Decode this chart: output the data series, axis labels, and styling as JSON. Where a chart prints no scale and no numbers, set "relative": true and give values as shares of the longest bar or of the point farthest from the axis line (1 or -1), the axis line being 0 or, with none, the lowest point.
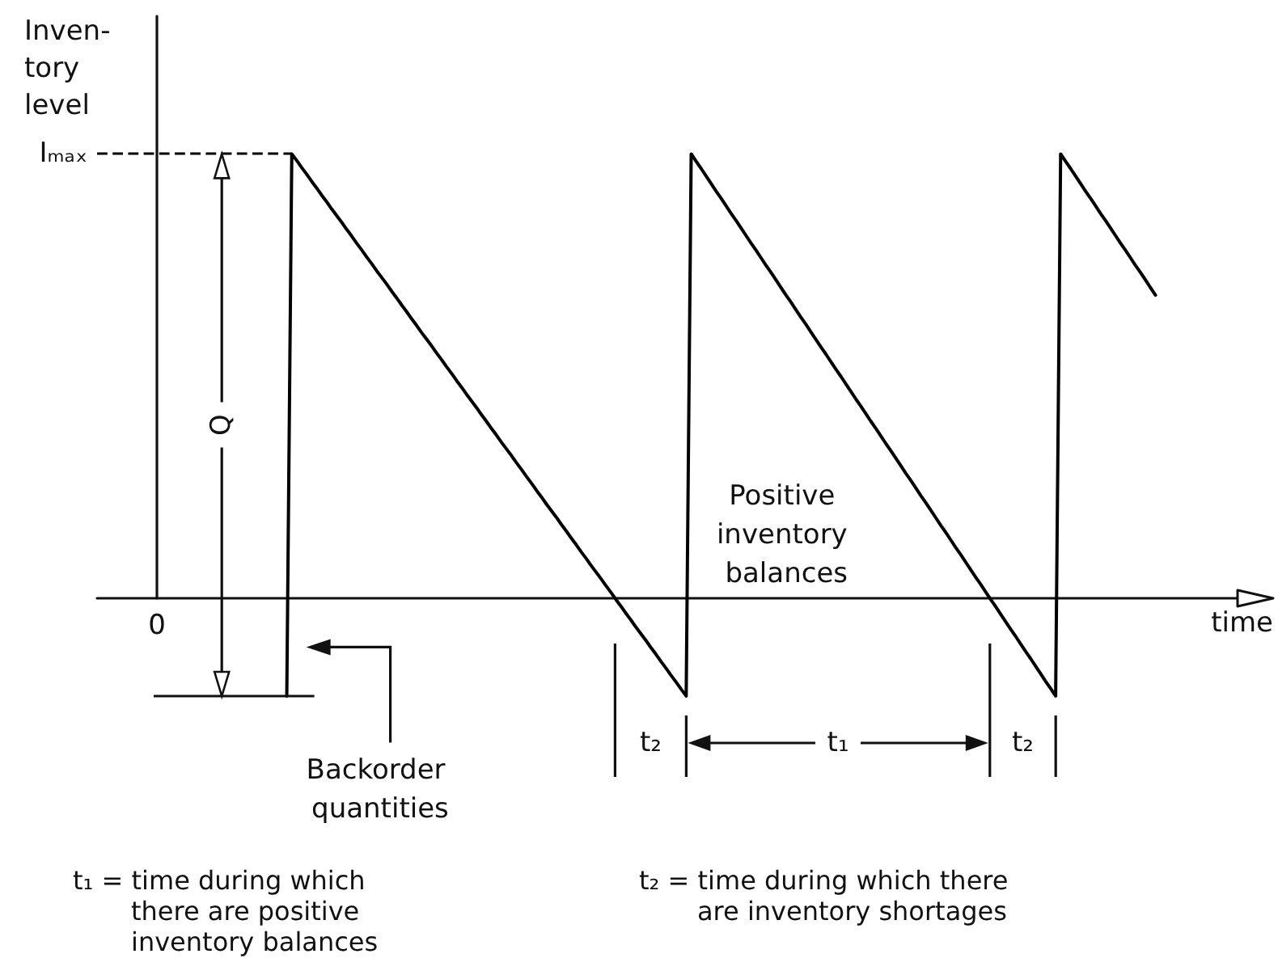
{
  "chart_data": {
    "type": "line",
    "ylabel": "Inven-\ntory\nlevel",
    "xlabel": "time",
    "relative": true,
    "categories": [
      null,
      null,
      null,
      null,
      null,
      null,
      null,
      null,
      null,
      null,
      null,
      null,
      null,
      null,
      null,
      null,
      null,
      null,
      null,
      null,
      null,
      null,
      null,
      null,
      null,
      null,
      null,
      null,
      null,
      null,
      null,
      null,
      null,
      null,
      null,
      null,
      null,
      null,
      null,
      null,
      null,
      null,
      null,
      null,
      null,
      null,
      null,
      null,
      null,
      null,
      null,
      null,
      null,
      null,
      null,
      null,
      null,
      null,
      null,
      null,
      null,
      null,
      null,
      null,
      null,
      null,
      null,
      null,
      null,
      null,
      null,
      null,
      null,
      null,
      null,
      null,
      null,
      null,
      null,
      null,
      null,
      null,
      null,
      null,
      null,
      null,
      null,
      null,
      null,
      null,
      null,
      null,
      null,
      null,
      null,
      null,
      null,
      null,
      null,
      null,
      null,
      null,
      null,
      null,
      null,
      null,
      null,
      null,
      null,
      null,
      null,
      null,
      null,
      null,
      null,
      null,
      null,
      null,
      null,
      null,
      null,
      null,
      null,
      null,
      null,
      null,
      null,
      null,
      null,
      null,
      null,
      null,
      null,
      null,
      null,
      null,
      null,
      null,
      null,
      null,
      null,
      null,
      null,
      null,
      null,
      null,
      null,
      null,
      null,
      null,
      null,
      null,
      null,
      null,
      null,
      null,
      null,
      null,
      null,
      null,
      null,
      null,
      null,
      null,
      null,
      null,
      null,
      null,
      null,
      null,
      null,
      null,
      null,
      null,
      null,
      null,
      null,
      null,
      null,
      null,
      null,
      null,
      null,
      null,
      null,
      null,
      null,
      null,
      null,
      null,
      null,
      null,
      null,
      null,
      null,
      null,
      null,
      null,
      null,
      null,
      null,
      null,
      null,
      null,
      null,
      null,
      null,
      null,
      null,
      null,
      null,
      null,
      null,
      null,
      null,
      null,
      null,
      null,
      null,
      null,
      null,
      null,
      null,
      null,
      null,
      null,
      null,
      null,
      null,
      null,
      null,
      null,
      null
    ],
    "values": [
      null,
      null,
      null,
      null,
      null,
      null,
      null,
      null,
      null,
      null,
      null,
      null,
      null,
      null,
      null,
      null,
      null,
      null,
      null,
      null,
      null,
      null,
      null,
      null,
      null,
      null,
      null,
      null,
      null,
      null,
      null,
      null,
      null,
      null,
      null,
      null,
      null,
      null,
      -0.22,
      1,
      0.985,
      0.969,
      0.954,
      0.938,
      0.923,
      0.907,
      0.892,
      0.876,
      0.861,
      0.846,
      0.83,
      0.815,
      0.799,
      0.784,
      0.768,
      0.753,
      0.737,
      0.722,
      0.707,
      0.691,
      0.676,
      0.66,
      0.645,
      0.629,
      0.614,
      0.598,
      0.583,
      0.568,
      0.552,
      0.537,
      0.521,
      0.506,
      0.49,
      0.475,
      0.459,
      0.444,
      0.429,
      0.413,
      0.398,
      0.382,
      0.367,
      0.351,
      0.336,
      0.321,
      0.305,
      0.29,
      0.274,
      0.259,
      0.243,
      0.228,
      0.212,
      0.197,
      0.182,
      0.166,
      0.151,
      0.135,
      0.12,
      0.104,
      0.089,
      0.073,
      0.058,
      0.043,
      0.027,
      0.012,
      -0.004,
      -0.019,
      -0.035,
      -0.05,
      -0.066,
      -0.081,
      -0.096,
      -0.112,
      -0.127,
      -0.143,
      -0.158,
      -0.174,
      -0.189,
      -0.205,
      -0.22,
      1,
      0.983,
      0.967,
      0.95,
      0.933,
      0.916,
      0.9,
      0.883,
      0.866,
      0.85,
      0.833,
      0.816,
      0.799,
      0.783,
      0.766,
      0.749,
      0.733,
      0.716,
      0.699,
      0.682,
      0.666,
      0.649,
      0.632,
      0.616,
      0.599,
      0.582,
      0.565,
      0.549,
      0.532,
      0.515,
      0.499,
      0.482,
      0.465,
      0.448,
      0.432,
      0.415,
      0.398,
      0.382,
      0.365,
      0.348,
      0.332,
      0.315,
      0.298,
      0.281,
      0.265,
      0.248,
      0.231,
      0.215,
      0.198,
      0.181,
      0.164,
      0.148,
      0.131,
      0.114,
      0.098,
      0.081,
      0.064,
      0.047,
      0.031,
      0.014,
      -0.003,
      -0.019,
      -0.036,
      -0.053,
      -0.07,
      -0.086,
      -0.103,
      -0.12,
      -0.136,
      -0.153,
      -0.17,
      -0.187,
      -0.203,
      -0.22,
      1,
      0.983,
      0.967,
      0.95,
      0.933,
      0.916,
      0.9,
      0.883,
      0.866,
      0.85,
      0.833,
      0.816,
      0.799,
      0.783,
      0.766,
      0.749,
      0.733,
      0.716,
      0.699,
      0.682,
      null,
      null,
      null,
      null,
      null,
      null,
      null,
      null,
      null,
      null,
      null,
      null,
      null,
      null,
      null,
      null,
      null,
      null,
      null,
      null
    ],
    "color": "#000000",
    "ref_lines": [
      {
        "axis": "y",
        "value": 1,
        "label": "Iₘₐₓ",
        "line_style": "dashed",
        "color": "#000000"
      }
    ],
    "annotations": [
      "0",
      "Q",
      "Positive inventory balances",
      "Backorder quantities",
      "t₂",
      "t₁",
      "t₂",
      "t₁ = time during which there are positive inventory balances",
      "t₂ = time during which there are inventory shortages"
    ]
  }
}
